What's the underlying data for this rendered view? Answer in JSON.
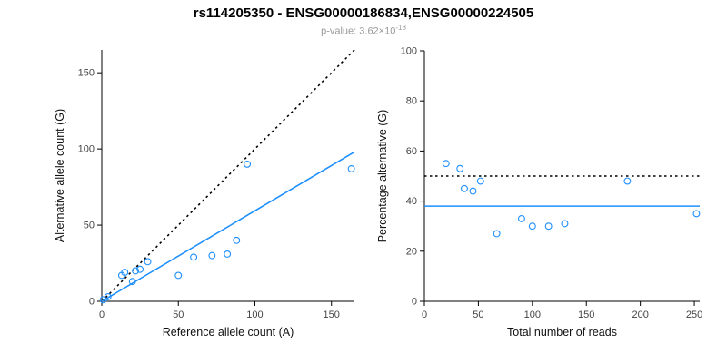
{
  "header": {
    "title": "rs114205350 - ENSG00000186834,ENSG00000224505",
    "subtitle_main": "p-value: 3.62×10",
    "subtitle_exponent": "-18"
  },
  "style": {
    "accent_blue": "#1E90FF",
    "line_black": "#000000",
    "subtitle_gray": "#999999"
  },
  "chart_data": [
    {
      "type": "scatter",
      "title": "",
      "xlabel": "Reference allele count (A)",
      "ylabel": "Alternative allele count (G)",
      "xlim": [
        0,
        165
      ],
      "ylim": [
        0,
        165
      ],
      "xticks": [
        0,
        50,
        100,
        150
      ],
      "yticks": [
        0,
        50,
        100,
        150
      ],
      "grid": false,
      "legend": "none",
      "marker": "open-circle",
      "point_color": "#1E90FF",
      "points": [
        [
          1,
          1
        ],
        [
          4,
          3
        ],
        [
          13,
          17
        ],
        [
          15,
          19
        ],
        [
          20,
          13
        ],
        [
          22,
          20
        ],
        [
          25,
          21
        ],
        [
          30,
          26
        ],
        [
          50,
          17
        ],
        [
          60,
          29
        ],
        [
          72,
          30
        ],
        [
          82,
          31
        ],
        [
          88,
          40
        ],
        [
          95,
          90
        ],
        [
          163,
          87
        ]
      ],
      "lines": [
        {
          "name": "identity-line",
          "style": "dotted",
          "color": "#000000",
          "x1": 0,
          "y1": 0,
          "x2": 165,
          "y2": 165
        },
        {
          "name": "regression-line",
          "style": "solid",
          "color": "#1E90FF",
          "x1": 0,
          "y1": 0,
          "x2": 165,
          "y2": 98
        }
      ]
    },
    {
      "type": "scatter",
      "title": "",
      "xlabel": "Total number of reads",
      "ylabel": "Percentage alternative (G)",
      "xlim": [
        0,
        255
      ],
      "ylim": [
        0,
        100
      ],
      "xticks": [
        0,
        50,
        100,
        150,
        200,
        250
      ],
      "yticks": [
        0,
        20,
        40,
        60,
        80,
        100
      ],
      "grid": false,
      "legend": "none",
      "marker": "open-circle",
      "point_color": "#1E90FF",
      "points": [
        [
          20,
          55
        ],
        [
          33,
          53
        ],
        [
          37,
          45
        ],
        [
          45,
          44
        ],
        [
          52,
          48
        ],
        [
          67,
          27
        ],
        [
          90,
          33
        ],
        [
          100,
          30
        ],
        [
          115,
          30
        ],
        [
          130,
          31
        ],
        [
          188,
          48
        ],
        [
          252,
          35
        ]
      ],
      "lines": [
        {
          "name": "expected-50pct-line",
          "style": "dotted",
          "color": "#000000",
          "y": 50
        },
        {
          "name": "mean-percentage-line",
          "style": "solid",
          "color": "#1E90FF",
          "y": 38
        }
      ]
    }
  ]
}
